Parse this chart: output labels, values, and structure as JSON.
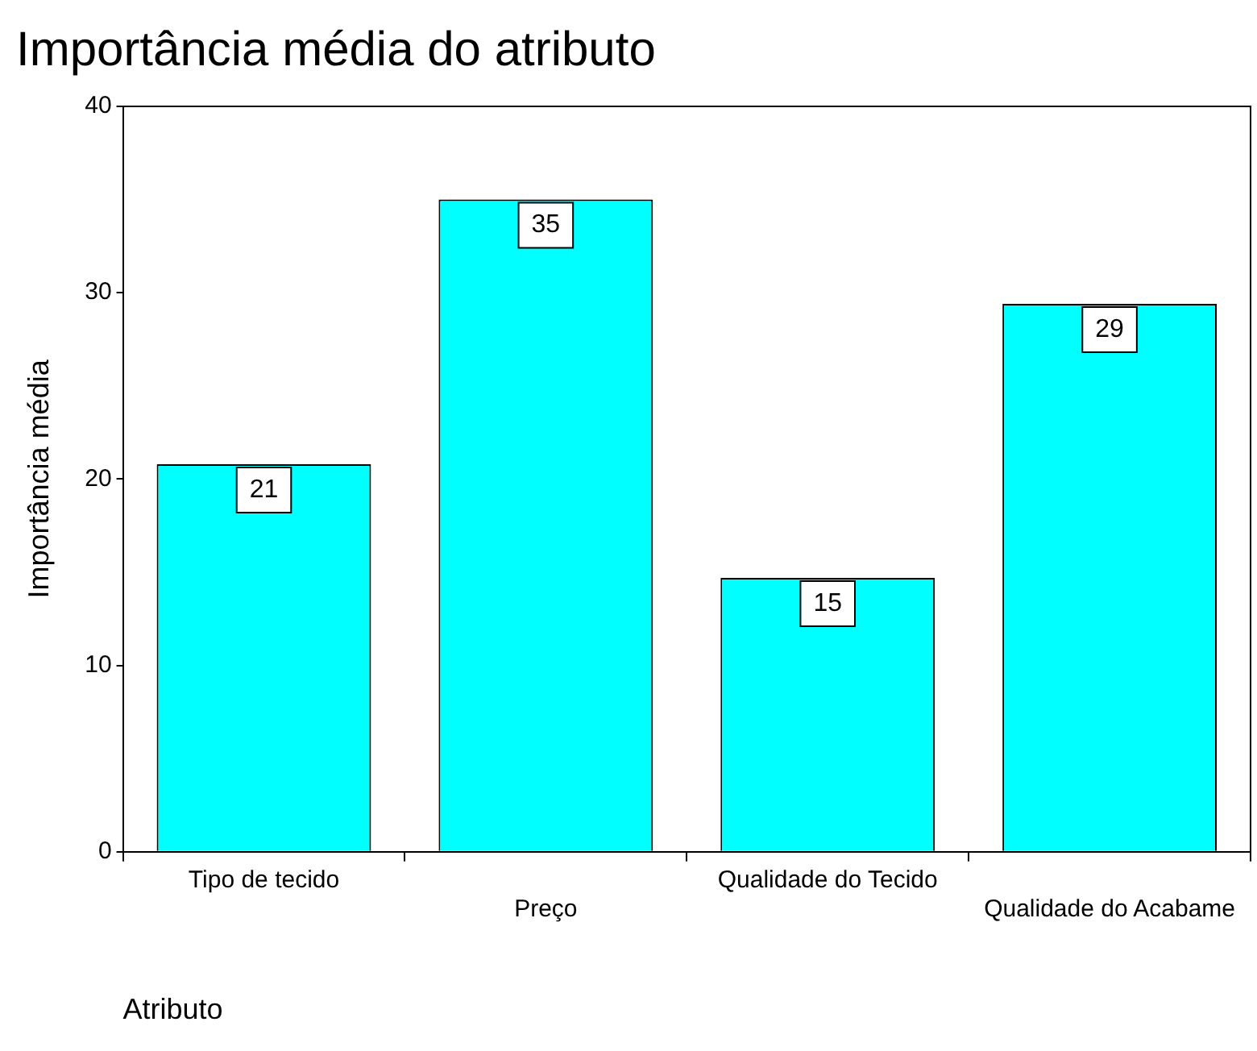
{
  "chart_data": {
    "type": "bar",
    "title": "Importância média do atributo",
    "xlabel": "Atributo",
    "ylabel": "Importância média",
    "categories": [
      "Tipo de tecido",
      "Preço",
      "Qualidade do Tecido",
      "Qualidade do Acabame"
    ],
    "values": [
      20.8,
      35.0,
      14.7,
      29.4
    ],
    "value_labels": [
      "21",
      "35",
      "15",
      "29"
    ],
    "color": "#00ffff",
    "ylim": [
      0,
      40
    ],
    "yticks": [
      0,
      10,
      20,
      30,
      40
    ],
    "grid": false,
    "legend": false
  }
}
